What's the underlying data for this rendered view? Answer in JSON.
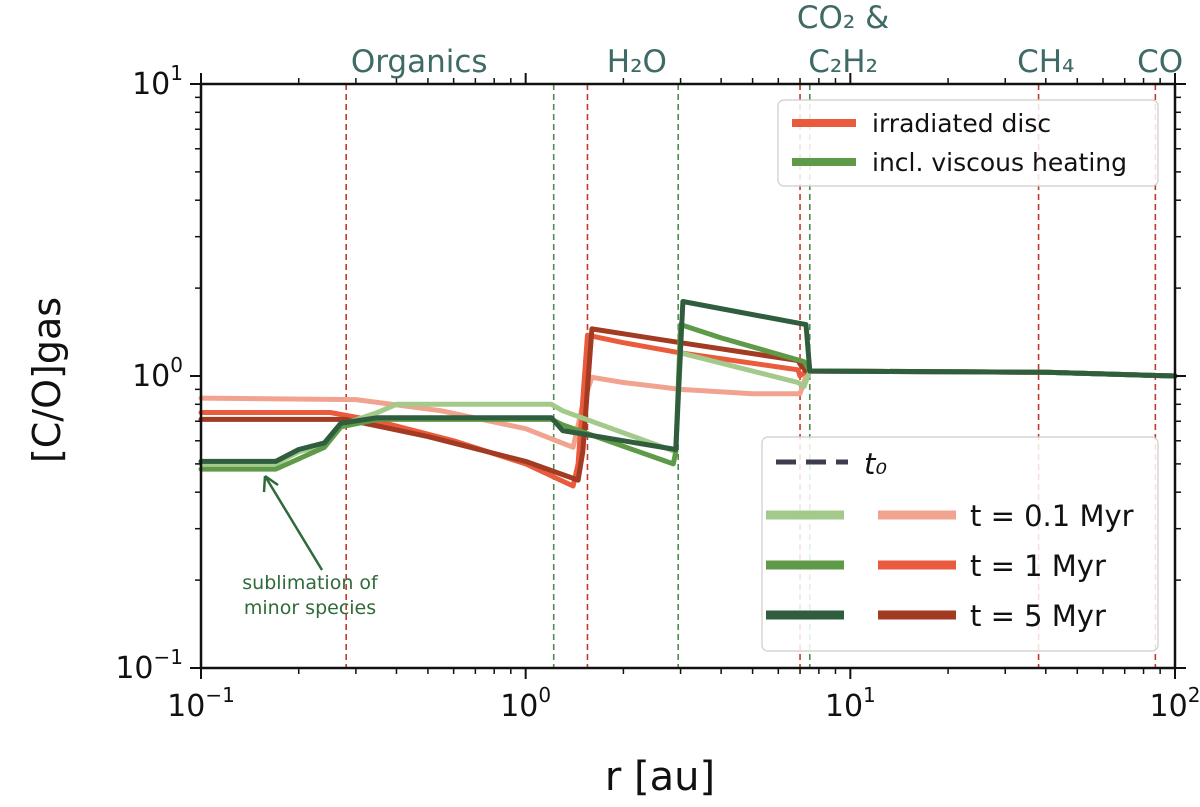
{
  "chart_data": {
    "type": "line",
    "xscale": "log",
    "yscale": "log",
    "xlim": [
      0.1,
      100
    ],
    "ylim": [
      0.1,
      10
    ],
    "xlabel": "r [au]",
    "ylabel": "[C/O]gas",
    "x_ticks": [
      {
        "base": "10",
        "exp": "−1",
        "value": 0.1
      },
      {
        "base": "10",
        "exp": "0",
        "value": 1
      },
      {
        "base": "10",
        "exp": "1",
        "value": 10
      },
      {
        "base": "10",
        "exp": "2",
        "value": 100
      }
    ],
    "y_ticks": [
      {
        "base": "10",
        "exp": "−1",
        "value": 0.1
      },
      {
        "base": "10",
        "exp": "0",
        "value": 1
      },
      {
        "base": "10",
        "exp": "1",
        "value": 10
      }
    ],
    "snowlines": [
      {
        "label": "Organics",
        "x": 0.28,
        "color": "#c0392b"
      },
      {
        "label": "",
        "x": 1.22,
        "color": "#4e8a4e"
      },
      {
        "label": "H₂O",
        "x": 1.55,
        "color": "#c0392b"
      },
      {
        "label": "",
        "x": 2.95,
        "color": "#4e8a4e"
      },
      {
        "label": "CO₂ &\nC₂H₂",
        "x": 7.0,
        "color": "#c0392b"
      },
      {
        "label": "",
        "x": 7.5,
        "color": "#4e8a4e"
      },
      {
        "label": "CH₄",
        "x": 38,
        "color": "#c0392b"
      },
      {
        "label": "CO",
        "x": 87,
        "color": "#c0392b"
      }
    ],
    "snowline_labels": [
      {
        "text": "Organics",
        "x": 0.47
      },
      {
        "text": "H₂O",
        "x": 2.2
      },
      {
        "text": "CO₂ &",
        "x": 9.5,
        "line": 1
      },
      {
        "text": "C₂H₂",
        "x": 9.5,
        "line": 2
      },
      {
        "text": "CH₄",
        "x": 40
      },
      {
        "text": "CO",
        "x": 90
      }
    ],
    "series": [
      {
        "name": "irradiated disc, t = 0.1 Myr",
        "color": "#f1a38f",
        "x": [
          0.1,
          0.3,
          0.55,
          1.0,
          1.4,
          1.5,
          1.6,
          2.0,
          3.0,
          5.0,
          7.0,
          7.4,
          40,
          100
        ],
        "y": [
          0.84,
          0.83,
          0.76,
          0.66,
          0.57,
          0.8,
          0.99,
          0.95,
          0.9,
          0.87,
          0.87,
          1.04,
          1.03,
          1.0
        ]
      },
      {
        "name": "irradiated disc, t = 1 Myr",
        "color": "#ea5a3c",
        "x": [
          0.1,
          0.25,
          0.35,
          0.6,
          1.0,
          1.4,
          1.45,
          1.55,
          2.0,
          3.0,
          6.9,
          7.0,
          7.3,
          40,
          100
        ],
        "y": [
          0.75,
          0.75,
          0.7,
          0.6,
          0.5,
          0.42,
          0.5,
          1.38,
          1.3,
          1.2,
          1.05,
          1.0,
          1.04,
          1.03,
          1.0
        ]
      },
      {
        "name": "irradiated disc, t = 5 Myr",
        "color": "#a33a22",
        "x": [
          0.1,
          0.28,
          0.5,
          1.0,
          1.45,
          1.5,
          1.6,
          3.0,
          6.9,
          7.0,
          7.3,
          40,
          100
        ],
        "y": [
          0.71,
          0.71,
          0.62,
          0.51,
          0.44,
          0.55,
          1.45,
          1.3,
          1.13,
          1.1,
          1.04,
          1.03,
          1.0
        ]
      },
      {
        "name": "incl. viscous heating, t = 0.1 Myr",
        "color": "#a3c98b",
        "x": [
          0.1,
          0.17,
          0.2,
          0.24,
          0.27,
          0.35,
          0.4,
          1.2,
          1.3,
          2.9,
          3.0,
          6.9,
          7.2,
          7.5,
          40,
          100
        ],
        "y": [
          0.5,
          0.5,
          0.55,
          0.58,
          0.68,
          0.75,
          0.8,
          0.8,
          0.76,
          0.55,
          1.2,
          0.95,
          0.92,
          1.04,
          1.03,
          1.0
        ]
      },
      {
        "name": "incl. viscous heating, t = 1 Myr",
        "color": "#5f9a48",
        "x": [
          0.1,
          0.17,
          0.2,
          0.24,
          0.27,
          0.35,
          1.2,
          1.3,
          2.85,
          2.9,
          3.0,
          4.0,
          7.2,
          7.5,
          40,
          100
        ],
        "y": [
          0.48,
          0.48,
          0.52,
          0.57,
          0.67,
          0.71,
          0.71,
          0.68,
          0.5,
          0.55,
          1.5,
          1.35,
          1.12,
          1.04,
          1.03,
          1.0
        ]
      },
      {
        "name": "incl. viscous heating, t = 5 Myr",
        "color": "#2f5d3d",
        "x": [
          0.1,
          0.17,
          0.2,
          0.24,
          0.27,
          0.35,
          1.2,
          1.3,
          2.9,
          2.95,
          3.05,
          7.3,
          7.5,
          40,
          100
        ],
        "y": [
          0.51,
          0.51,
          0.56,
          0.59,
          0.69,
          0.72,
          0.72,
          0.65,
          0.56,
          0.85,
          1.8,
          1.5,
          1.04,
          1.03,
          1.0
        ]
      }
    ],
    "legend_top": {
      "position": "top-right",
      "entries": [
        {
          "label": "irradiated disc",
          "color": "#ea5a3c"
        },
        {
          "label": "incl. viscous heating",
          "color": "#5f9a48"
        }
      ]
    },
    "legend_bottom": {
      "position": "bottom-right",
      "t0_label": "t₀",
      "t0_color": "#3d3d4d",
      "rows": [
        {
          "label": "t = 0.1 Myr",
          "green": "#a3c98b",
          "red": "#f1a38f"
        },
        {
          "label": "t = 1 Myr",
          "green": "#5f9a48",
          "red": "#ea5a3c"
        },
        {
          "label": "t = 5 Myr",
          "green": "#2f5d3d",
          "red": "#a33a22"
        }
      ]
    },
    "annotations": [
      {
        "text": "sublimation of",
        "line": 1
      },
      {
        "text": "minor species",
        "line": 2
      }
    ],
    "annotation_color": "#2f6b3a"
  }
}
